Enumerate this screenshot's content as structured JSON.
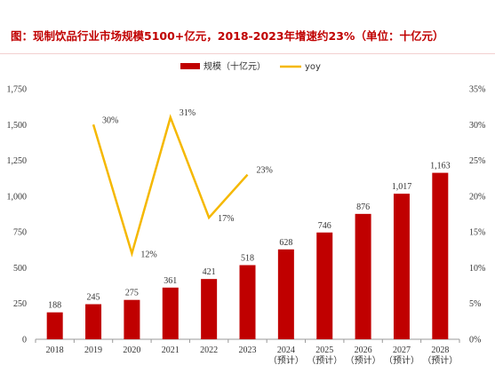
{
  "title": "图：现制饮品行业市场规模5100+亿元，2018-2023年增速约23%（单位：十亿元）",
  "chart_data": {
    "type": "bar+line",
    "categories": [
      [
        "2018"
      ],
      [
        "2019"
      ],
      [
        "2020"
      ],
      [
        "2021"
      ],
      [
        "2022"
      ],
      [
        "2023"
      ],
      [
        "2024",
        "（预计）"
      ],
      [
        "2025",
        "（预计）"
      ],
      [
        "2026",
        "（预计）"
      ],
      [
        "2027",
        "（预计）"
      ],
      [
        "2028",
        "（预计）"
      ]
    ],
    "series": [
      {
        "name": "规模（十亿元）",
        "type": "bar",
        "axis": "left",
        "values": [
          188,
          245,
          275,
          361,
          421,
          518,
          628,
          746,
          876,
          1017,
          1163
        ],
        "labels": [
          "188",
          "245",
          "275",
          "361",
          "421",
          "518",
          "628",
          "746",
          "876",
          "1,017",
          "1,163"
        ],
        "color": "#c00000"
      },
      {
        "name": "yoy",
        "type": "line",
        "axis": "right",
        "values": [
          null,
          30,
          12,
          31,
          17,
          23,
          null,
          null,
          null,
          null,
          null
        ],
        "labels": [
          null,
          "30%",
          "12%",
          "31%",
          "17%",
          "23%",
          null,
          null,
          null,
          null,
          null
        ],
        "color": "#f5b800"
      }
    ],
    "left_axis": {
      "ylim": [
        0,
        1750
      ],
      "ticks": [
        0,
        250,
        500,
        750,
        1000,
        1250,
        1500,
        1750
      ],
      "tick_labels": [
        "0",
        "250",
        "500",
        "750",
        "1,000",
        "1,250",
        "1,500",
        "1,750"
      ]
    },
    "right_axis": {
      "ylim": [
        0,
        35
      ],
      "ticks": [
        0,
        5,
        10,
        15,
        20,
        25,
        30,
        35
      ],
      "tick_labels": [
        "0%",
        "5%",
        "10%",
        "15%",
        "20%",
        "25%",
        "30%",
        "35%"
      ]
    },
    "legend_position": "top-center",
    "grid": false
  }
}
